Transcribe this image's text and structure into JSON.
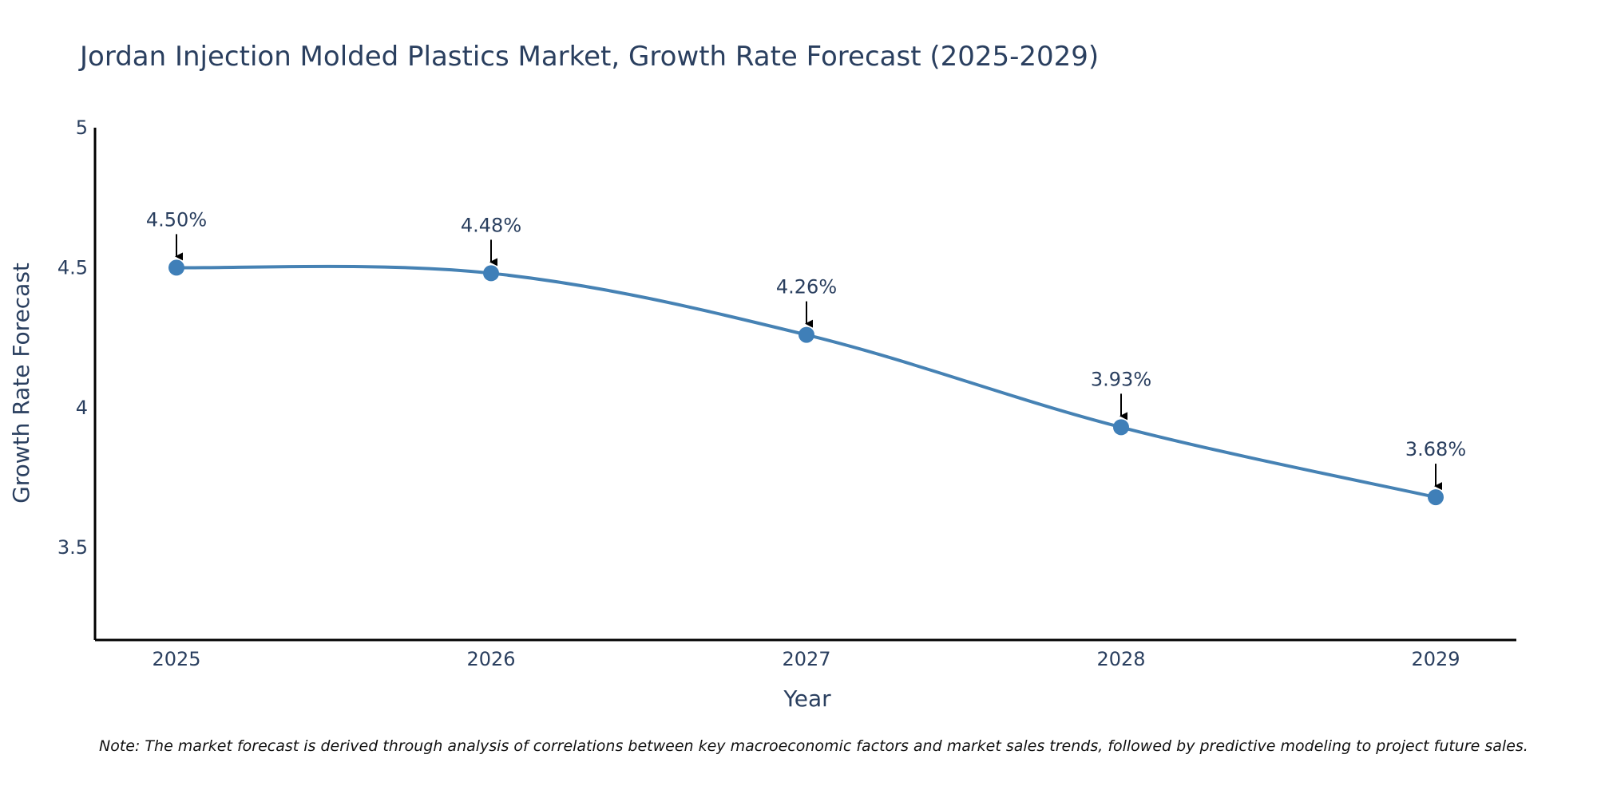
{
  "chart_data": {
    "type": "line",
    "title": "Jordan Injection Molded Plastics Market, Growth Rate Forecast (2025-2029)",
    "xlabel": "Year",
    "ylabel": "Growth Rate Forecast",
    "categories": [
      "2025",
      "2026",
      "2027",
      "2028",
      "2029"
    ],
    "series": [
      {
        "name": "Growth Rate Forecast",
        "values": [
          4.5,
          4.48,
          4.26,
          3.93,
          3.68
        ],
        "data_labels": [
          "4.50%",
          "4.48%",
          "4.26%",
          "3.93%",
          "3.68%"
        ]
      }
    ],
    "ylim": [
      3.17,
      5.0
    ],
    "yticks": [
      3.5,
      4,
      4.5,
      5
    ],
    "ytick_labels": [
      "3.5",
      "4",
      "4.5",
      "5"
    ],
    "grid": false,
    "line_shape": "spline",
    "colors": {
      "line": "#4682b4",
      "marker": "#3f7fb8",
      "arrow": "#000000",
      "axis": "#000000",
      "text": "#2a3f5f"
    },
    "note": "Note: The market forecast is derived through analysis of correlations between key macroeconomic factors and market sales trends, followed by predictive modeling to project future sales."
  }
}
